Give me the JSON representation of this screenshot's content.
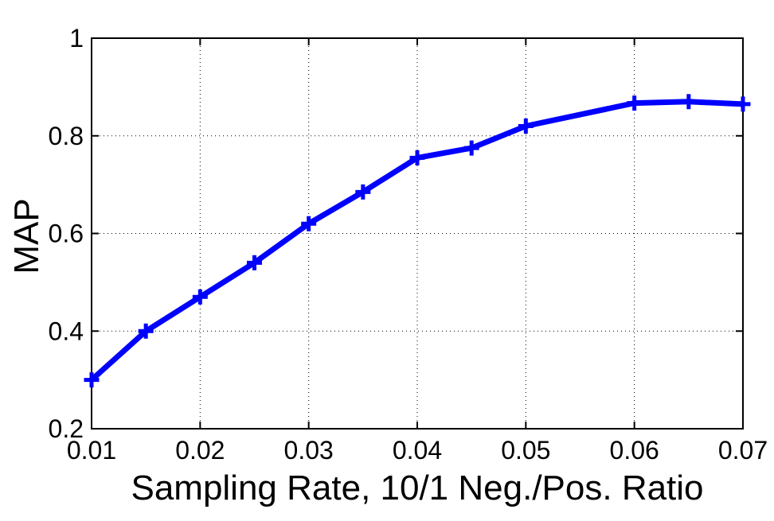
{
  "chart_data": {
    "type": "line",
    "title": "",
    "xlabel": "Sampling Rate, 10/1 Neg./Pos. Ratio",
    "ylabel": "MAP",
    "xlim": [
      0.01,
      0.07
    ],
    "ylim": [
      0.2,
      1.0
    ],
    "grid": true,
    "x_ticks": [
      "0.01",
      "0.02",
      "0.03",
      "0.04",
      "0.05",
      "0.06",
      "0.07"
    ],
    "y_ticks": [
      "0.2",
      "0.4",
      "0.6",
      "0.8",
      "1"
    ],
    "series": [
      {
        "color": "#0000ff",
        "marker": "plus",
        "x": [
          0.01,
          0.015,
          0.02,
          0.025,
          0.03,
          0.035,
          0.04,
          0.045,
          0.05,
          0.06,
          0.065,
          0.07
        ],
        "values": [
          0.3,
          0.4,
          0.47,
          0.54,
          0.62,
          0.685,
          0.755,
          0.775,
          0.82,
          0.867,
          0.87,
          0.865
        ]
      }
    ]
  }
}
